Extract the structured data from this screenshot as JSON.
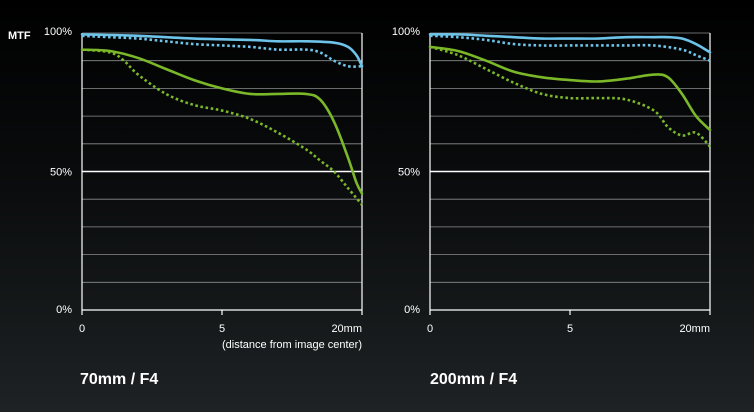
{
  "ylabel": "MTF",
  "xnote": "(distance from image center)",
  "colors": {
    "sagittal": "#6dc3e8",
    "meridional": "#7ab829",
    "grid": "#8a8d8f",
    "grid_major": "#ffffff"
  },
  "chart_data": [
    {
      "type": "line",
      "title": "70mm / F4",
      "x_ticks": [
        "0",
        "5",
        "20mm"
      ],
      "y_ticks": [
        "100%",
        "50%",
        "0%"
      ],
      "xlim": [
        0,
        10
      ],
      "ylim": [
        0,
        100
      ],
      "grid": true,
      "series": [
        {
          "color": "#6dc3e8",
          "dash": false,
          "x": [
            0,
            2,
            4,
            6,
            7,
            8,
            9,
            9.5,
            9.8,
            10
          ],
          "y": [
            99.5,
            99,
            98,
            97.5,
            97,
            97,
            96.5,
            95,
            92,
            88
          ]
        },
        {
          "color": "#6dc3e8",
          "dash": true,
          "x": [
            0,
            1,
            2,
            3,
            4,
            5,
            6,
            7,
            8,
            8.5,
            9,
            9.5,
            10
          ],
          "y": [
            99,
            98.5,
            98,
            97,
            96,
            95.5,
            95,
            94,
            94,
            93,
            90,
            88,
            88
          ]
        },
        {
          "color": "#7ab829",
          "dash": false,
          "x": [
            0,
            1,
            2,
            3,
            4,
            5,
            6,
            7,
            8,
            8.5,
            9,
            9.5,
            9.8,
            10
          ],
          "y": [
            94,
            93.5,
            91,
            87,
            83,
            80,
            78,
            78,
            78,
            76,
            68,
            55,
            46,
            42
          ]
        },
        {
          "color": "#7ab829",
          "dash": true,
          "x": [
            0,
            1,
            1.5,
            2,
            3,
            4,
            5,
            6,
            7,
            8,
            8.5,
            9,
            9.5,
            10
          ],
          "y": [
            94,
            93,
            90,
            85,
            78,
            74,
            72,
            69,
            64,
            58,
            54,
            50,
            44,
            38
          ]
        }
      ]
    },
    {
      "type": "line",
      "title": "200mm / F4",
      "x_ticks": [
        "0",
        "5",
        "20mm"
      ],
      "y_ticks": [
        "100%",
        "50%",
        "0%"
      ],
      "xlim": [
        0,
        10
      ],
      "ylim": [
        0,
        100
      ],
      "grid": true,
      "series": [
        {
          "color": "#6dc3e8",
          "dash": false,
          "x": [
            0,
            1,
            2,
            3,
            4,
            5,
            6,
            7,
            8,
            8.5,
            9,
            9.5,
            10
          ],
          "y": [
            99.5,
            99.5,
            99,
            98.5,
            98,
            98,
            98,
            98.5,
            98.5,
            98.5,
            98,
            96,
            93
          ]
        },
        {
          "color": "#6dc3e8",
          "dash": true,
          "x": [
            0,
            1,
            2,
            3,
            4,
            5,
            6,
            7,
            8,
            9,
            9.5,
            10
          ],
          "y": [
            99,
            98.5,
            97.5,
            96,
            95.5,
            95.5,
            95.5,
            95.5,
            95.5,
            94,
            92,
            90
          ]
        },
        {
          "color": "#7ab829",
          "dash": false,
          "x": [
            0,
            1,
            2,
            3,
            4,
            5,
            6,
            7,
            8,
            8.5,
            9,
            9.5,
            10
          ],
          "y": [
            95,
            93.5,
            90,
            86,
            84,
            83,
            82.5,
            83.5,
            85,
            84,
            78,
            70,
            65
          ]
        },
        {
          "color": "#7ab829",
          "dash": true,
          "x": [
            0,
            1,
            2,
            3,
            4,
            5,
            6,
            7,
            8,
            8.5,
            9,
            9.5,
            10
          ],
          "y": [
            95,
            92,
            87,
            82,
            78,
            76.5,
            76.5,
            76,
            72,
            66,
            63,
            64,
            59
          ]
        }
      ]
    }
  ]
}
